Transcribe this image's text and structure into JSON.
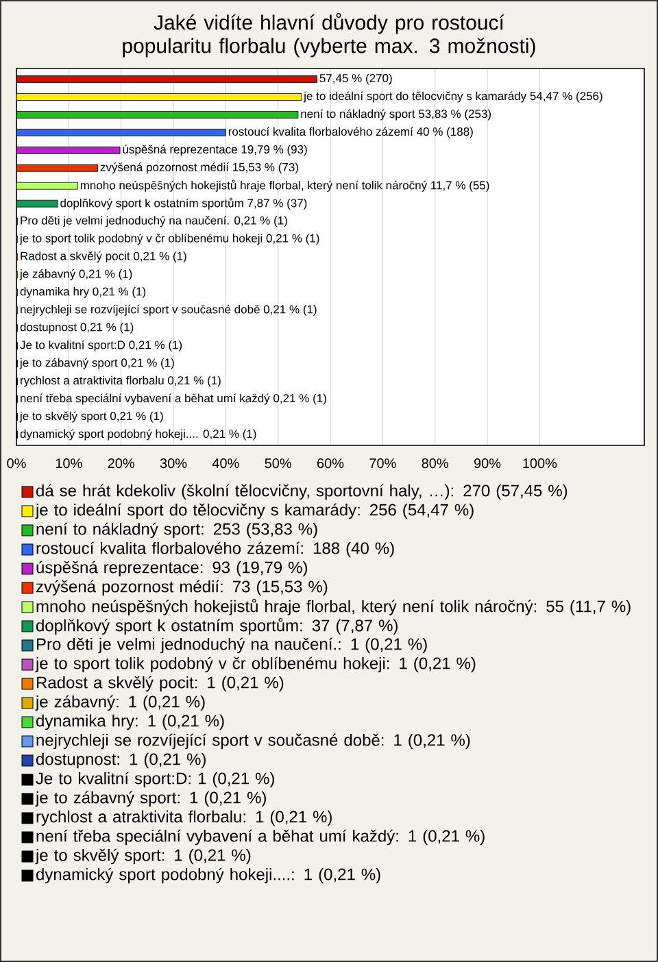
{
  "chart_data": {
    "type": "bar",
    "orientation": "horizontal",
    "title": "Jaké vidíte hlavní důvody pro rostoucí popularitu florbalu (vyberte max. 3 možnosti)",
    "categories": [
      null,
      null,
      null,
      null,
      null,
      null,
      null,
      null,
      null,
      null,
      null,
      null,
      null,
      null,
      null,
      null,
      null,
      null,
      null,
      null,
      null
    ],
    "series": [
      {
        "name": "dá se hrát kdekoliv (školní tělocvičny, sportovní haly, …): 270 (57,45 %)",
        "color": "#cc1100",
        "values": [
          57.45,
          null,
          null,
          null,
          null,
          null,
          null,
          null,
          null,
          null,
          null,
          null,
          null,
          null,
          null,
          null,
          null,
          null,
          null,
          null,
          null
        ],
        "value_labels": [
          "57,45 % (270)",
          null,
          null,
          null,
          null,
          null,
          null,
          null,
          null,
          null,
          null,
          null,
          null,
          null,
          null,
          null,
          null,
          null,
          null,
          null,
          null
        ]
      },
      {
        "name": "je to ideální sport do tělocvičny s kamarády: 256 (54,47 %)",
        "color": "#ffee00",
        "values": [
          null,
          54.47,
          null,
          null,
          null,
          null,
          null,
          null,
          null,
          null,
          null,
          null,
          null,
          null,
          null,
          null,
          null,
          null,
          null,
          null,
          null
        ],
        "value_labels": [
          null,
          "je to ideální sport do tělocvičny s kamarády 54,47 % (256)",
          null,
          null,
          null,
          null,
          null,
          null,
          null,
          null,
          null,
          null,
          null,
          null,
          null,
          null,
          null,
          null,
          null,
          null,
          null
        ]
      },
      {
        "name": "není to nákladný sport: 253 (53,83 %)",
        "color": "#22bb22",
        "values": [
          null,
          null,
          53.83,
          null,
          null,
          null,
          null,
          null,
          null,
          null,
          null,
          null,
          null,
          null,
          null,
          null,
          null,
          null,
          null,
          null,
          null
        ],
        "value_labels": [
          null,
          null,
          "není to nákladný sport 53,83 % (253)",
          null,
          null,
          null,
          null,
          null,
          null,
          null,
          null,
          null,
          null,
          null,
          null,
          null,
          null,
          null,
          null,
          null,
          null
        ]
      },
      {
        "name": "rostoucí kvalita florbalového zázemí: 188 (40 %)",
        "color": "#3366ee",
        "values": [
          null,
          null,
          null,
          40,
          null,
          null,
          null,
          null,
          null,
          null,
          null,
          null,
          null,
          null,
          null,
          null,
          null,
          null,
          null,
          null,
          null
        ],
        "value_labels": [
          null,
          null,
          null,
          "rostoucí kvalita florbalového zázemí 40 % (188)",
          null,
          null,
          null,
          null,
          null,
          null,
          null,
          null,
          null,
          null,
          null,
          null,
          null,
          null,
          null,
          null,
          null
        ]
      },
      {
        "name": "úspěšná reprezentace: 93 (19,79 %)",
        "color": "#bb22cc",
        "values": [
          null,
          null,
          null,
          null,
          19.79,
          null,
          null,
          null,
          null,
          null,
          null,
          null,
          null,
          null,
          null,
          null,
          null,
          null,
          null,
          null,
          null
        ],
        "value_labels": [
          null,
          null,
          null,
          null,
          "úspěšná reprezentace 19,79 % (93)",
          null,
          null,
          null,
          null,
          null,
          null,
          null,
          null,
          null,
          null,
          null,
          null,
          null,
          null,
          null,
          null
        ]
      },
      {
        "name": "zvýšená pozornost médií: 73 (15,53 %)",
        "color": "#ee3300",
        "values": [
          null,
          null,
          null,
          null,
          null,
          15.53,
          null,
          null,
          null,
          null,
          null,
          null,
          null,
          null,
          null,
          null,
          null,
          null,
          null,
          null,
          null
        ],
        "value_labels": [
          null,
          null,
          null,
          null,
          null,
          "zvýšená pozornost médií 15,53 % (73)",
          null,
          null,
          null,
          null,
          null,
          null,
          null,
          null,
          null,
          null,
          null,
          null,
          null,
          null,
          null
        ]
      },
      {
        "name": "mnoho neúspěšných hokejistů hraje florbal, který není tolik náročný: 55 (11,7 %)",
        "color": "#bbff66",
        "values": [
          null,
          null,
          null,
          null,
          null,
          null,
          11.7,
          null,
          null,
          null,
          null,
          null,
          null,
          null,
          null,
          null,
          null,
          null,
          null,
          null,
          null
        ],
        "value_labels": [
          null,
          null,
          null,
          null,
          null,
          null,
          "mnoho neúspěšných hokejistů hraje florbal, který není tolik náročný 11,7 % (55)",
          null,
          null,
          null,
          null,
          null,
          null,
          null,
          null,
          null,
          null,
          null,
          null,
          null,
          null
        ]
      },
      {
        "name": "doplňkový sport k ostatním sportům: 37 (7,87 %)",
        "color": "#119955",
        "values": [
          null,
          null,
          null,
          null,
          null,
          null,
          null,
          7.87,
          null,
          null,
          null,
          null,
          null,
          null,
          null,
          null,
          null,
          null,
          null,
          null,
          null
        ],
        "value_labels": [
          null,
          null,
          null,
          null,
          null,
          null,
          null,
          "doplňkový sport k ostatním sportům 7,87 % (37)",
          null,
          null,
          null,
          null,
          null,
          null,
          null,
          null,
          null,
          null,
          null,
          null,
          null
        ]
      },
      {
        "name": "Pro děti je velmi jednoduchý na naučení.: 1 (0,21 %)",
        "color": "#227788",
        "values": [
          null,
          null,
          null,
          null,
          null,
          null,
          null,
          null,
          0.21,
          null,
          null,
          null,
          null,
          null,
          null,
          null,
          null,
          null,
          null,
          null,
          null
        ],
        "value_labels": [
          null,
          null,
          null,
          null,
          null,
          null,
          null,
          null,
          "Pro děti je velmi jednoduchý na naučení. 0,21 % (1)",
          null,
          null,
          null,
          null,
          null,
          null,
          null,
          null,
          null,
          null,
          null,
          null
        ]
      },
      {
        "name": "je to sport tolik podobný v čr oblíbenému hokeji: 1 (0,21 %)",
        "color": "#bb55bb",
        "values": [
          null,
          null,
          null,
          null,
          null,
          null,
          null,
          null,
          null,
          0.21,
          null,
          null,
          null,
          null,
          null,
          null,
          null,
          null,
          null,
          null,
          null
        ],
        "value_labels": [
          null,
          null,
          null,
          null,
          null,
          null,
          null,
          null,
          null,
          "je to sport tolik podobný v čr oblíbenému hokeji 0,21 % (1)",
          null,
          null,
          null,
          null,
          null,
          null,
          null,
          null,
          null,
          null,
          null
        ]
      },
      {
        "name": "Radost a skvělý pocit: 1 (0,21 %)",
        "color": "#ee7700",
        "values": [
          null,
          null,
          null,
          null,
          null,
          null,
          null,
          null,
          null,
          null,
          0.21,
          null,
          null,
          null,
          null,
          null,
          null,
          null,
          null,
          null,
          null
        ],
        "value_labels": [
          null,
          null,
          null,
          null,
          null,
          null,
          null,
          null,
          null,
          null,
          "Radost a skvělý pocit 0,21 % (1)",
          null,
          null,
          null,
          null,
          null,
          null,
          null,
          null,
          null,
          null
        ]
      },
      {
        "name": "je zábavný: 1 (0,21 %)",
        "color": "#ddaa00",
        "values": [
          null,
          null,
          null,
          null,
          null,
          null,
          null,
          null,
          null,
          null,
          null,
          0.21,
          null,
          null,
          null,
          null,
          null,
          null,
          null,
          null,
          null
        ],
        "value_labels": [
          null,
          null,
          null,
          null,
          null,
          null,
          null,
          null,
          null,
          null,
          null,
          "je zábavný 0,21 % (1)",
          null,
          null,
          null,
          null,
          null,
          null,
          null,
          null,
          null
        ]
      },
      {
        "name": "dynamika hry: 1 (0,21 %)",
        "color": "#44dd33",
        "values": [
          null,
          null,
          null,
          null,
          null,
          null,
          null,
          null,
          null,
          null,
          null,
          null,
          0.21,
          null,
          null,
          null,
          null,
          null,
          null,
          null,
          null
        ],
        "value_labels": [
          null,
          null,
          null,
          null,
          null,
          null,
          null,
          null,
          null,
          null,
          null,
          null,
          "dynamika hry 0,21 % (1)",
          null,
          null,
          null,
          null,
          null,
          null,
          null,
          null
        ]
      },
      {
        "name": "nejrychleji se rozvíjející sport v současné době: 1 (0,21 %)",
        "color": "#6699ee",
        "values": [
          null,
          null,
          null,
          null,
          null,
          null,
          null,
          null,
          null,
          null,
          null,
          null,
          null,
          0.21,
          null,
          null,
          null,
          null,
          null,
          null,
          null
        ],
        "value_labels": [
          null,
          null,
          null,
          null,
          null,
          null,
          null,
          null,
          null,
          null,
          null,
          null,
          null,
          "nejrychleji se rozvíjející sport v současné době 0,21 % (1)",
          null,
          null,
          null,
          null,
          null,
          null,
          null
        ]
      },
      {
        "name": "dostupnost: 1 (0,21 %)",
        "color": "#2244aa",
        "values": [
          null,
          null,
          null,
          null,
          null,
          null,
          null,
          null,
          null,
          null,
          null,
          null,
          null,
          null,
          0.21,
          null,
          null,
          null,
          null,
          null,
          null
        ],
        "value_labels": [
          null,
          null,
          null,
          null,
          null,
          null,
          null,
          null,
          null,
          null,
          null,
          null,
          null,
          null,
          "dostupnost 0,21 % (1)",
          null,
          null,
          null,
          null,
          null,
          null
        ]
      },
      {
        "name": "Je to kvalitní sport:D: 1 (0,21 %)",
        "color": "#000000",
        "values": [
          null,
          null,
          null,
          null,
          null,
          null,
          null,
          null,
          null,
          null,
          null,
          null,
          null,
          null,
          null,
          0.21,
          null,
          null,
          null,
          null,
          null
        ],
        "value_labels": [
          null,
          null,
          null,
          null,
          null,
          null,
          null,
          null,
          null,
          null,
          null,
          null,
          null,
          null,
          null,
          "Je to kvalitní sport:D 0,21 % (1)",
          null,
          null,
          null,
          null,
          null
        ]
      },
      {
        "name": "je to zábavný sport: 1 (0,21 %)",
        "color": "#000000",
        "values": [
          null,
          null,
          null,
          null,
          null,
          null,
          null,
          null,
          null,
          null,
          null,
          null,
          null,
          null,
          null,
          null,
          0.21,
          null,
          null,
          null,
          null
        ],
        "value_labels": [
          null,
          null,
          null,
          null,
          null,
          null,
          null,
          null,
          null,
          null,
          null,
          null,
          null,
          null,
          null,
          null,
          "je to zábavný sport 0,21 % (1)",
          null,
          null,
          null,
          null
        ]
      },
      {
        "name": "rychlost a atraktivita florbalu: 1 (0,21 %)",
        "color": "#000000",
        "values": [
          null,
          null,
          null,
          null,
          null,
          null,
          null,
          null,
          null,
          null,
          null,
          null,
          null,
          null,
          null,
          null,
          null,
          0.21,
          null,
          null,
          null
        ],
        "value_labels": [
          null,
          null,
          null,
          null,
          null,
          null,
          null,
          null,
          null,
          null,
          null,
          null,
          null,
          null,
          null,
          null,
          null,
          "rychlost a atraktivita florbalu 0,21 % (1)",
          null,
          null,
          null
        ]
      },
      {
        "name": "není třeba speciální vybavení a běhat umí každý: 1 (0,21 %)",
        "color": "#000000",
        "values": [
          null,
          null,
          null,
          null,
          null,
          null,
          null,
          null,
          null,
          null,
          null,
          null,
          null,
          null,
          null,
          null,
          null,
          null,
          0.21,
          null,
          null
        ],
        "value_labels": [
          null,
          null,
          null,
          null,
          null,
          null,
          null,
          null,
          null,
          null,
          null,
          null,
          null,
          null,
          null,
          null,
          null,
          null,
          "není třeba speciální vybavení a běhat umí každý 0,21 % (1)",
          null,
          null
        ]
      },
      {
        "name": "je to skvělý sport: 1 (0,21 %)",
        "color": "#000000",
        "values": [
          null,
          null,
          null,
          null,
          null,
          null,
          null,
          null,
          null,
          null,
          null,
          null,
          null,
          null,
          null,
          null,
          null,
          null,
          null,
          0.21,
          null
        ],
        "value_labels": [
          null,
          null,
          null,
          null,
          null,
          null,
          null,
          null,
          null,
          null,
          null,
          null,
          null,
          null,
          null,
          null,
          null,
          null,
          null,
          "je to skvělý sport 0,21 % (1)",
          null
        ]
      },
      {
        "name": "dynamický sport podobný hokeji....: 1 (0,21 %)",
        "color": "#000000",
        "values": [
          null,
          null,
          null,
          null,
          null,
          null,
          null,
          null,
          null,
          null,
          null,
          null,
          null,
          null,
          null,
          null,
          null,
          null,
          null,
          null,
          0.21
        ],
        "value_labels": [
          null,
          null,
          null,
          null,
          null,
          null,
          null,
          null,
          null,
          null,
          null,
          null,
          null,
          null,
          null,
          null,
          null,
          null,
          null,
          null,
          "dynamický sport podobný hokeji.... 0,21 % (1)"
        ]
      }
    ],
    "xlim": [
      0,
      120
    ],
    "xticks": [
      {
        "value": 0,
        "label": "0%"
      },
      {
        "value": 10,
        "label": "10%"
      },
      {
        "value": 20,
        "label": "20%"
      },
      {
        "value": 30,
        "label": "30%"
      },
      {
        "value": 40,
        "label": "40%"
      },
      {
        "value": 50,
        "label": "50%"
      },
      {
        "value": 60,
        "label": "60%"
      },
      {
        "value": 70,
        "label": "70%"
      },
      {
        "value": 80,
        "label": "80%"
      },
      {
        "value": 90,
        "label": "90%"
      },
      {
        "value": 100,
        "label": "100%"
      }
    ],
    "grid": "x",
    "legend": "bottom",
    "tick_labels": "x"
  }
}
